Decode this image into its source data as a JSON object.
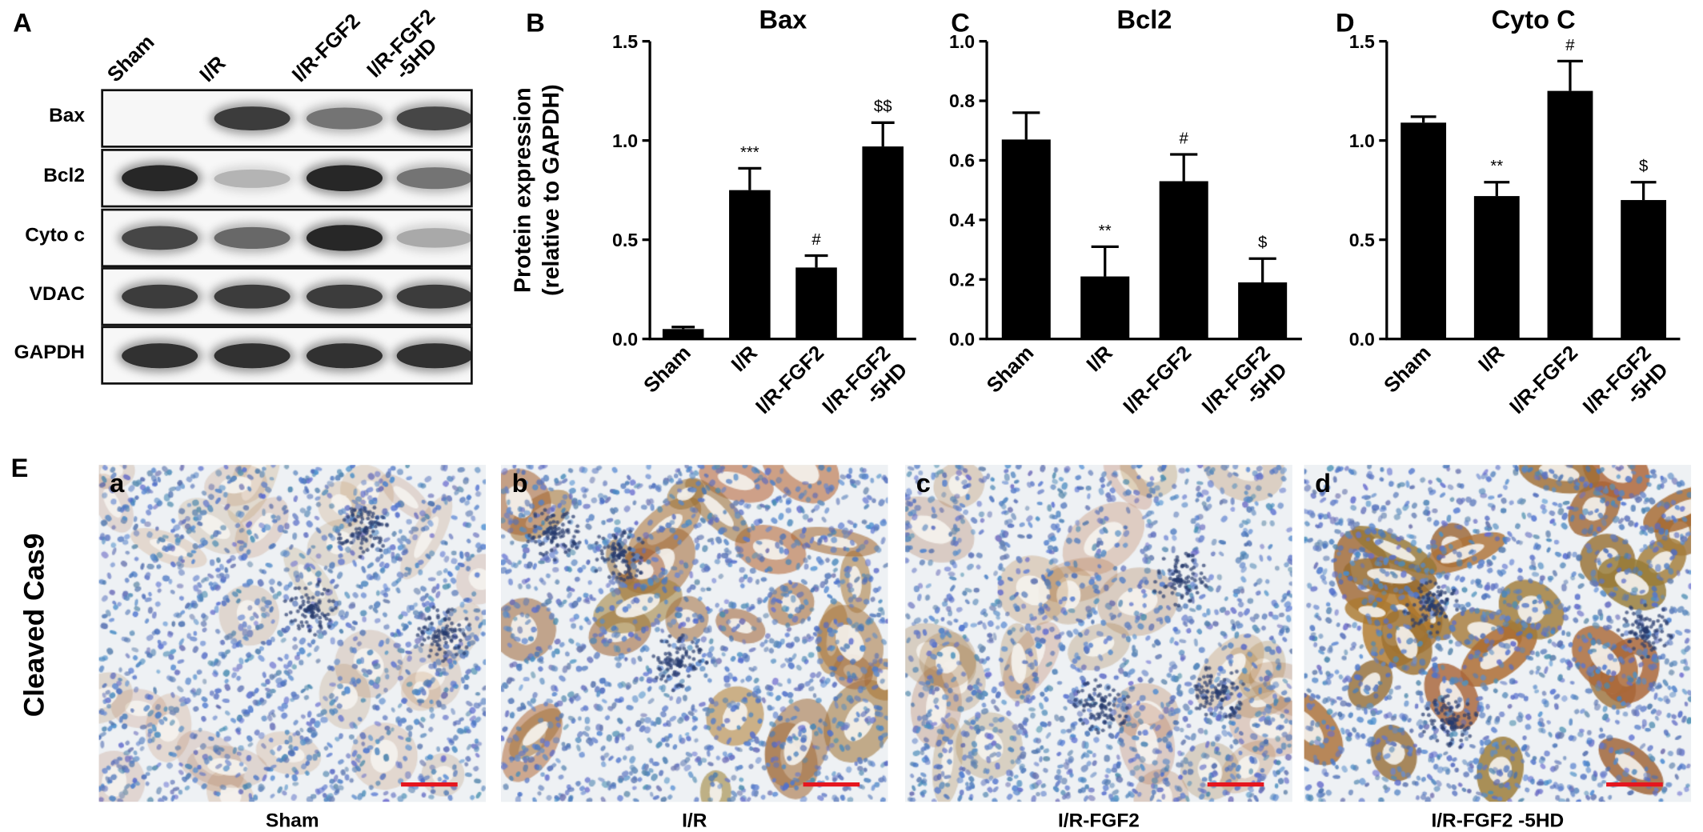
{
  "panelA": {
    "letter": "A",
    "lanes": [
      "Sham",
      "I/R",
      "I/R-FGF2",
      "I/R-FGF2\n-5HD"
    ],
    "rows": [
      {
        "label": "Bax",
        "intensities": [
          0.0,
          0.85,
          0.6,
          0.8
        ]
      },
      {
        "label": "Bcl2",
        "intensities": [
          0.95,
          0.3,
          0.95,
          0.6
        ]
      },
      {
        "label": "Cyto c",
        "intensities": [
          0.8,
          0.65,
          0.95,
          0.35
        ]
      },
      {
        "label": "VDAC",
        "intensities": [
          0.85,
          0.85,
          0.85,
          0.85
        ]
      },
      {
        "label": "GAPDH",
        "intensities": [
          0.9,
          0.9,
          0.9,
          0.9
        ]
      }
    ]
  },
  "chart_data": [
    {
      "letter": "B",
      "type": "bar",
      "title": "Bax",
      "ylabel": "Protein expression\n(relative to GAPDH)",
      "categories": [
        "Sham",
        "I/R",
        "I/R-FGF2",
        "I/R-FGF2\n-5HD"
      ],
      "values": [
        0.05,
        0.75,
        0.36,
        0.97
      ],
      "errors": [
        0.01,
        0.11,
        0.06,
        0.12
      ],
      "annotations": [
        "",
        "***",
        "#",
        "$$"
      ],
      "ylim": [
        0,
        1.5
      ],
      "yticks": [
        "0.0",
        "0.5",
        "1.0",
        "1.5"
      ]
    },
    {
      "letter": "C",
      "type": "bar",
      "title": "Bcl2",
      "ylabel": "",
      "categories": [
        "Sham",
        "I/R",
        "I/R-FGF2",
        "I/R-FGF2\n-5HD"
      ],
      "values": [
        0.67,
        0.21,
        0.53,
        0.19
      ],
      "errors": [
        0.09,
        0.1,
        0.09,
        0.08
      ],
      "annotations": [
        "",
        "**",
        "#",
        "$"
      ],
      "ylim": [
        0,
        1.0
      ],
      "yticks": [
        "0.0",
        "0.2",
        "0.4",
        "0.6",
        "0.8",
        "1.0"
      ]
    },
    {
      "letter": "D",
      "type": "bar",
      "title": "Cyto C",
      "ylabel": "",
      "categories": [
        "Sham",
        "I/R",
        "I/R-FGF2",
        "I/R-FGF2\n-5HD"
      ],
      "values": [
        1.09,
        0.72,
        1.25,
        0.7
      ],
      "errors": [
        0.03,
        0.07,
        0.15,
        0.09
      ],
      "annotations": [
        "",
        "**",
        "#",
        "$"
      ],
      "ylim": [
        0,
        1.5
      ],
      "yticks": [
        "0.0",
        "0.5",
        "1.0",
        "1.5"
      ]
    }
  ],
  "panelE": {
    "letter": "E",
    "side_label": "Cleaved Cas9",
    "images": [
      {
        "letter": "a",
        "caption": "Sham",
        "stain_level": 0.05
      },
      {
        "letter": "b",
        "caption": "I/R",
        "stain_level": 0.55
      },
      {
        "letter": "c",
        "caption": "I/R-FGF2",
        "stain_level": 0.15
      },
      {
        "letter": "d",
        "caption": "I/R-FGF2 -5HD",
        "stain_level": 0.9
      }
    ]
  },
  "colors": {
    "bar": "#000000",
    "scale_bar": "#e5161e",
    "hematoxylin": "#5b7fb8",
    "dab": "#9a5a22"
  }
}
